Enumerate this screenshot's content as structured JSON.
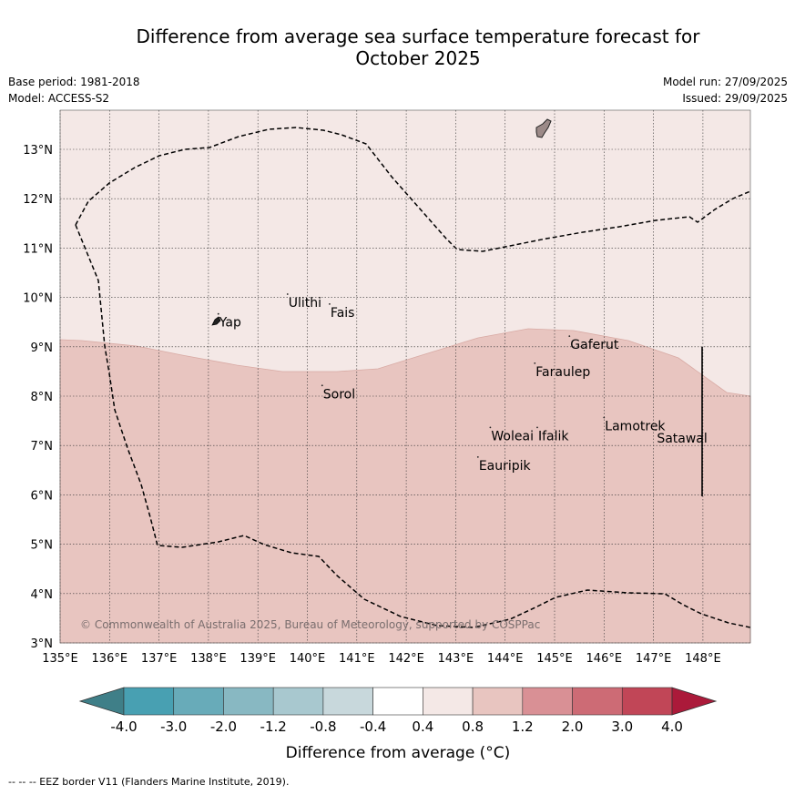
{
  "title_line1": "Difference from average sea surface temperature forecast for",
  "title_line2": "October 2025",
  "base_period": "Base period: 1981-2018",
  "model": "Model: ACCESS-S2",
  "model_run": "Model run: 27/09/2025",
  "issued": "Issued: 29/09/2025",
  "copyright": "© Commonwealth of Australia 2025, Bureau of Meteorology, supported by COSPPac",
  "footer_legend": "--  --  -- EEZ border V11 (Flanders Marine Institute, 2019).",
  "lon_labels": [
    "135°E",
    "136°E",
    "137°E",
    "138°E",
    "139°E",
    "140°E",
    "141°E",
    "142°E",
    "143°E",
    "144°E",
    "145°E",
    "146°E",
    "147°E",
    "148°E"
  ],
  "lat_labels": [
    "3°N",
    "4°N",
    "5°N",
    "6°N",
    "7°N",
    "8°N",
    "9°N",
    "10°N",
    "11°N",
    "12°N",
    "13°N"
  ],
  "places": [
    {
      "name": "Yap",
      "lon": 138.2,
      "lat": 9.5
    },
    {
      "name": "Ulithi",
      "lon": 139.6,
      "lat": 9.9
    },
    {
      "name": "Fais",
      "lon": 140.45,
      "lat": 9.7
    },
    {
      "name": "Gaferut",
      "lon": 145.3,
      "lat": 9.05
    },
    {
      "name": "Faraulep",
      "lon": 144.6,
      "lat": 8.5
    },
    {
      "name": "Sorol",
      "lon": 140.3,
      "lat": 8.05
    },
    {
      "name": "Woleai",
      "lon": 143.7,
      "lat": 7.2
    },
    {
      "name": "Ifalik",
      "lon": 144.65,
      "lat": 7.2
    },
    {
      "name": "Lamotrek",
      "lon": 146.0,
      "lat": 7.4
    },
    {
      "name": "Satawal",
      "lon": 147.05,
      "lat": 7.15
    },
    {
      "name": "Eauripik",
      "lon": 143.45,
      "lat": 6.6
    }
  ],
  "colorbar": {
    "ticks": [
      "-4.0",
      "-3.0",
      "-2.0",
      "-1.2",
      "-0.8",
      "-0.4",
      "0.4",
      "0.8",
      "1.2",
      "2.0",
      "3.0",
      "4.0"
    ],
    "colors": [
      "#3f7f88",
      "#48a0b2",
      "#68abb9",
      "#88b8c2",
      "#a8c8cf",
      "#c8d8dc",
      "#ffffff",
      "#f4e8e6",
      "#e8c5c0",
      "#d99095",
      "#cd6b75",
      "#c14657",
      "#ab1a3a"
    ],
    "label": "Difference from average (°C)"
  },
  "field_colors": {
    "upper": "#f4e8e6",
    "lower": "#e8c5c0"
  }
}
